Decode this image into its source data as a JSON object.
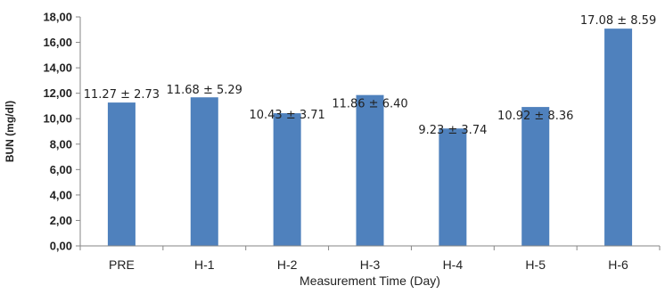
{
  "chart_data": {
    "type": "bar",
    "categories": [
      "PRE",
      "H-1",
      "H-2",
      "H-3",
      "H-4",
      "H-5",
      "H-6"
    ],
    "values": [
      11.27,
      11.68,
      10.43,
      11.86,
      9.23,
      10.92,
      17.08
    ],
    "data_labels": [
      "11.27 ± 2.73",
      "11.68 ± 5.29",
      "10.43 ± 3.71",
      "11.86 ± 6.40",
      "9.23 ± 3.74",
      "10.92 ± 8.36",
      "17.08 ± 8.59"
    ],
    "xlabel": "Measurement Time (Day)",
    "ylabel": "BUN (mg/dl)",
    "ylim": [
      0,
      18
    ],
    "yticks": [
      0,
      2,
      4,
      6,
      8,
      10,
      12,
      14,
      16,
      18
    ],
    "ytick_labels": [
      "0,00",
      "2,00",
      "4,00",
      "6,00",
      "8,00",
      "10,00",
      "12,00",
      "14,00",
      "16,00",
      "18,00"
    ],
    "grid": false,
    "bar_color": "#4F81BD",
    "axis_color": "#868686"
  }
}
